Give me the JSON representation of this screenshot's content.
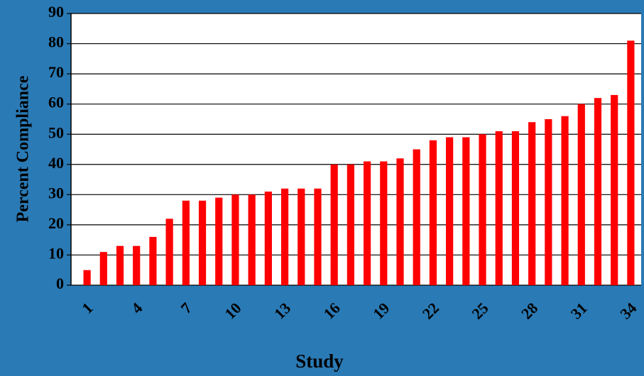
{
  "chart_data": {
    "type": "bar",
    "x_label": "Study",
    "y_label": "Percent Compliance",
    "categories": [
      "1",
      null,
      null,
      "4",
      null,
      null,
      "7",
      null,
      null,
      "10",
      null,
      null,
      "13",
      null,
      null,
      "16",
      null,
      null,
      "19",
      null,
      null,
      "22",
      null,
      null,
      "25",
      null,
      null,
      "28",
      null,
      null,
      "31",
      null,
      null,
      "34"
    ],
    "values": [
      5,
      11,
      13,
      13,
      16,
      22,
      28,
      28,
      29,
      30,
      30,
      31,
      32,
      32,
      32,
      40,
      40,
      41,
      41,
      42,
      45,
      48,
      49,
      49,
      50,
      51,
      51,
      54,
      55,
      56,
      60,
      62,
      63,
      81
    ],
    "color": "#ff0000",
    "ylim": [
      0,
      90
    ],
    "yticks": [
      0,
      10,
      20,
      30,
      40,
      50,
      60,
      70,
      80,
      90
    ],
    "grid": true
  }
}
